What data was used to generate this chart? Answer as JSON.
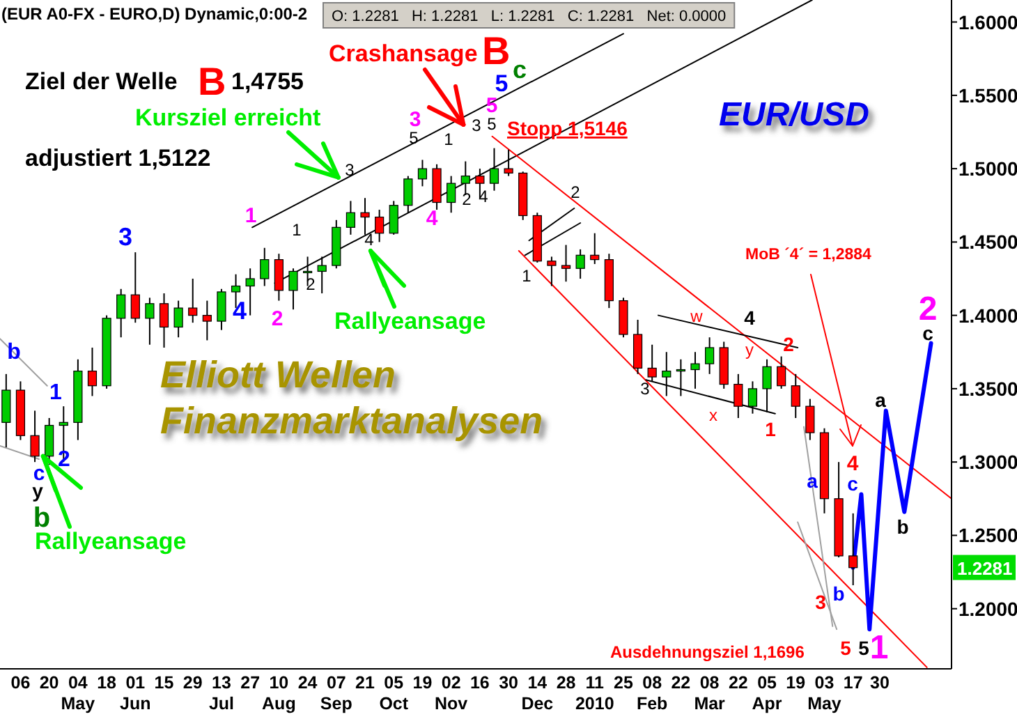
{
  "chart_data": {
    "type": "candlestick",
    "title": "(EUR A0-FX - EURO,D) Dynamic,0:00-2",
    "x": [
      "2009-03-30",
      "2009-04-06",
      "2009-04-13",
      "2009-04-20",
      "2009-04-27",
      "2009-05-04",
      "2009-05-11",
      "2009-05-18",
      "2009-05-25",
      "2009-06-01",
      "2009-06-08",
      "2009-06-15",
      "2009-06-22",
      "2009-06-29",
      "2009-07-06",
      "2009-07-13",
      "2009-07-20",
      "2009-07-27",
      "2009-08-03",
      "2009-08-10",
      "2009-08-17",
      "2009-08-24",
      "2009-08-31",
      "2009-09-07",
      "2009-09-14",
      "2009-09-21",
      "2009-09-28",
      "2009-10-05",
      "2009-10-12",
      "2009-10-19",
      "2009-10-26",
      "2009-11-02",
      "2009-11-09",
      "2009-11-16",
      "2009-11-23",
      "2009-11-30",
      "2009-12-07",
      "2009-12-14",
      "2009-12-21",
      "2009-12-28",
      "2010-01-04",
      "2010-01-11",
      "2010-01-18",
      "2010-01-25",
      "2010-02-01",
      "2010-02-08",
      "2010-02-15",
      "2010-02-22",
      "2010-03-01",
      "2010-03-08",
      "2010-03-15",
      "2010-03-22",
      "2010-03-29",
      "2010-04-05",
      "2010-04-12",
      "2010-04-19",
      "2010-04-26",
      "2010-05-03",
      "2010-05-10",
      "2010-05-17"
    ],
    "ohlc": [
      [
        1.327,
        1.36,
        1.31,
        1.349
      ],
      [
        1.349,
        1.355,
        1.315,
        1.318
      ],
      [
        1.318,
        1.335,
        1.3,
        1.304
      ],
      [
        1.304,
        1.33,
        1.298,
        1.325
      ],
      [
        1.325,
        1.338,
        1.3,
        1.327
      ],
      [
        1.327,
        1.37,
        1.315,
        1.362
      ],
      [
        1.362,
        1.378,
        1.345,
        1.352
      ],
      [
        1.352,
        1.4,
        1.35,
        1.398
      ],
      [
        1.398,
        1.418,
        1.385,
        1.414
      ],
      [
        1.414,
        1.443,
        1.395,
        1.398
      ],
      [
        1.398,
        1.412,
        1.38,
        1.408
      ],
      [
        1.408,
        1.415,
        1.378,
        1.392
      ],
      [
        1.392,
        1.41,
        1.385,
        1.405
      ],
      [
        1.405,
        1.425,
        1.395,
        1.4
      ],
      [
        1.4,
        1.41,
        1.383,
        1.396
      ],
      [
        1.396,
        1.418,
        1.39,
        1.416
      ],
      [
        1.416,
        1.428,
        1.405,
        1.42
      ],
      [
        1.42,
        1.432,
        1.4,
        1.425
      ],
      [
        1.425,
        1.446,
        1.42,
        1.438
      ],
      [
        1.438,
        1.442,
        1.41,
        1.417
      ],
      [
        1.417,
        1.432,
        1.404,
        1.43
      ],
      [
        1.43,
        1.44,
        1.42,
        1.43
      ],
      [
        1.43,
        1.44,
        1.415,
        1.434
      ],
      [
        1.434,
        1.465,
        1.432,
        1.46
      ],
      [
        1.46,
        1.478,
        1.455,
        1.47
      ],
      [
        1.47,
        1.48,
        1.455,
        1.467
      ],
      [
        1.467,
        1.472,
        1.45,
        1.456
      ],
      [
        1.456,
        1.478,
        1.455,
        1.475
      ],
      [
        1.475,
        1.495,
        1.47,
        1.493
      ],
      [
        1.493,
        1.506,
        1.488,
        1.5
      ],
      [
        1.5,
        1.503,
        1.472,
        1.477
      ],
      [
        1.477,
        1.495,
        1.47,
        1.49
      ],
      [
        1.49,
        1.505,
        1.482,
        1.495
      ],
      [
        1.495,
        1.5,
        1.48,
        1.49
      ],
      [
        1.49,
        1.514,
        1.485,
        1.5
      ],
      [
        1.5,
        1.513,
        1.495,
        1.497
      ],
      [
        1.497,
        1.498,
        1.465,
        1.468
      ],
      [
        1.468,
        1.47,
        1.436,
        1.437
      ],
      [
        1.437,
        1.44,
        1.42,
        1.434
      ],
      [
        1.434,
        1.448,
        1.423,
        1.432
      ],
      [
        1.432,
        1.445,
        1.425,
        1.441
      ],
      [
        1.441,
        1.456,
        1.435,
        1.438
      ],
      [
        1.438,
        1.442,
        1.405,
        1.41
      ],
      [
        1.41,
        1.412,
        1.385,
        1.387
      ],
      [
        1.387,
        1.397,
        1.36,
        1.364
      ],
      [
        1.364,
        1.38,
        1.355,
        1.358
      ],
      [
        1.358,
        1.375,
        1.345,
        1.362
      ],
      [
        1.362,
        1.37,
        1.345,
        1.363
      ],
      [
        1.363,
        1.375,
        1.35,
        1.367
      ],
      [
        1.367,
        1.385,
        1.36,
        1.378
      ],
      [
        1.378,
        1.382,
        1.35,
        1.353
      ],
      [
        1.353,
        1.36,
        1.33,
        1.338
      ],
      [
        1.338,
        1.355,
        1.333,
        1.35
      ],
      [
        1.35,
        1.37,
        1.334,
        1.365
      ],
      [
        1.365,
        1.372,
        1.35,
        1.352
      ],
      [
        1.352,
        1.36,
        1.33,
        1.338
      ],
      [
        1.338,
        1.343,
        1.315,
        1.32
      ],
      [
        1.32,
        1.323,
        1.265,
        1.275
      ],
      [
        1.275,
        1.3,
        1.235,
        1.236
      ],
      [
        1.236,
        1.265,
        1.216,
        1.228
      ]
    ],
    "series": [
      {
        "type": "line",
        "color": "#000000",
        "x": [
          "2009-07-28",
          "2010-01-25"
        ],
        "values": [
          1.46,
          1.592
        ]
      },
      {
        "type": "line",
        "color": "#000000",
        "x": [
          "2009-08-08",
          "2010-04-27"
        ],
        "values": [
          1.422,
          1.615
        ]
      },
      {
        "type": "line",
        "color": "#ff0000",
        "x": [
          "2009-11-22",
          "2010-07-04"
        ],
        "values": [
          1.522,
          1.275
        ]
      },
      {
        "type": "line",
        "color": "#ff0000",
        "x": [
          "2009-12-05",
          "2010-06-22"
        ],
        "values": [
          1.444,
          1.16
        ]
      },
      {
        "type": "line",
        "color": "#000000",
        "x": [
          "2009-12-08",
          "2010-01-04"
        ],
        "values": [
          1.441,
          1.463
        ]
      },
      {
        "type": "line",
        "color": "#000000",
        "x": [
          "2009-12-10",
          "2010-01-01"
        ],
        "values": [
          1.451,
          1.473
        ]
      },
      {
        "type": "line",
        "color": "#000000",
        "x": [
          "2010-02-11",
          "2010-04-20"
        ],
        "values": [
          1.4,
          1.378
        ]
      },
      {
        "type": "line",
        "color": "#000000",
        "x": [
          "2010-02-05",
          "2010-04-09"
        ],
        "values": [
          1.356,
          1.333
        ]
      },
      {
        "type": "line",
        "color": "#a0a0a0",
        "x": [
          "2009-03-27",
          "2009-04-19"
        ],
        "values": [
          1.384,
          1.352
        ]
      },
      {
        "type": "line",
        "color": "#a0a0a0",
        "x": [
          "2009-03-27",
          "2009-04-15"
        ],
        "values": [
          1.311,
          1.302
        ]
      },
      {
        "type": "line",
        "color": "#a0a0a0",
        "x": [
          "2010-04-23",
          "2010-05-07"
        ],
        "values": [
          1.324,
          1.188
        ]
      },
      {
        "type": "line",
        "color": "#a0a0a0",
        "x": [
          "2010-04-20",
          "2010-05-09"
        ],
        "values": [
          1.259,
          1.186
        ]
      },
      {
        "type": "line",
        "color": "#0000ff",
        "x": [
          "2010-05-17",
          "2010-05-21",
          "2010-05-25",
          "2010-06-02",
          "2010-06-11",
          "2010-06-24"
        ],
        "values": [
          1.228,
          1.278,
          1.186,
          1.335,
          1.266,
          1.381
        ]
      }
    ],
    "xlim": [
      "2009-03-27",
      "2010-07-04"
    ],
    "xticks": [
      {
        "value": "2009-04-06",
        "label": "06"
      },
      {
        "value": "2009-04-20",
        "label": "20"
      },
      {
        "value": "2009-05-04",
        "label": "04\nMay"
      },
      {
        "value": "2009-05-18",
        "label": "18"
      },
      {
        "value": "2009-06-01",
        "label": "01\nJun"
      },
      {
        "value": "2009-06-15",
        "label": "15"
      },
      {
        "value": "2009-06-29",
        "label": "29"
      },
      {
        "value": "2009-07-13",
        "label": "13\nJul"
      },
      {
        "value": "2009-07-27",
        "label": "27"
      },
      {
        "value": "2009-08-10",
        "label": "10\nAug"
      },
      {
        "value": "2009-08-24",
        "label": "24"
      },
      {
        "value": "2009-09-07",
        "label": "07\nSep"
      },
      {
        "value": "2009-09-21",
        "label": "21"
      },
      {
        "value": "2009-10-05",
        "label": "05\nOct"
      },
      {
        "value": "2009-10-19",
        "label": "19"
      },
      {
        "value": "2009-11-02",
        "label": "02\nNov"
      },
      {
        "value": "2009-11-16",
        "label": "16"
      },
      {
        "value": "2009-11-30",
        "label": "30"
      },
      {
        "value": "2009-12-14",
        "label": "14\nDec"
      },
      {
        "value": "2009-12-28",
        "label": "28"
      },
      {
        "value": "2010-01-11",
        "label": "11\n2010"
      },
      {
        "value": "2010-01-25",
        "label": "25"
      },
      {
        "value": "2010-02-08",
        "label": "08\nFeb"
      },
      {
        "value": "2010-02-22",
        "label": "22"
      },
      {
        "value": "2010-03-08",
        "label": "08\nMar"
      },
      {
        "value": "2010-03-22",
        "label": "22"
      },
      {
        "value": "2010-04-05",
        "label": "05\nApr"
      },
      {
        "value": "2010-04-19",
        "label": "19"
      },
      {
        "value": "2010-05-03",
        "label": "03\nMay"
      },
      {
        "value": "2010-05-17",
        "label": "17"
      },
      {
        "value": "2010-05-30",
        "label": "30"
      }
    ],
    "ylim": [
      1.159,
      1.615
    ],
    "yticks": [
      {
        "value": 1.2,
        "label": "1.2000"
      },
      {
        "value": 1.25,
        "label": "1.2500"
      },
      {
        "value": 1.3,
        "label": "1.3000"
      },
      {
        "value": 1.35,
        "label": "1.3500"
      },
      {
        "value": 1.4,
        "label": "1.4000"
      },
      {
        "value": 1.45,
        "label": "1.4500"
      },
      {
        "value": 1.5,
        "label": "1.5000"
      },
      {
        "value": 1.55,
        "label": "1.5500"
      },
      {
        "value": 1.6,
        "label": "1.6000"
      }
    ],
    "grid": false,
    "annotations": [
      "Ziel der Welle",
      "B",
      "1,4755",
      "adjustiert 1,5122",
      {
        "text": "Kursziel erreicht",
        "x": "2009-09-08",
        "y": 1.494
      },
      {
        "text": "Crashansage",
        "x": "2009-11-08",
        "y": 1.53
      },
      "B",
      "Stopp 1,5146",
      "EUR/USD",
      "MoB ´4´ = 1,2884",
      "Rallyeansage",
      {
        "text": "Rallyeansage",
        "x": "2009-04-17",
        "y": 1.304
      },
      "Elliott Wellen",
      "Finanzmarktanalysen",
      "Ausdehnungsziel 1,1696",
      "O: 1.2281   H: 1.2281   L: 1.2281   C: 1.2281   Net: 0.0000",
      "1.2281",
      "b",
      "1",
      "c",
      "2",
      "y",
      "b",
      "3",
      "4",
      "1",
      "2",
      "1",
      "2",
      "3",
      "4",
      "3",
      "5",
      "4",
      "1",
      "2",
      "4",
      "3",
      "5",
      "5",
      "5",
      "c",
      "1",
      "2",
      "3",
      "w",
      "x",
      "4",
      "y",
      "2",
      "1",
      "3",
      "a",
      "b",
      "4",
      "c",
      "a",
      "b",
      "c",
      "2",
      "5",
      "5",
      "1"
    ]
  }
}
